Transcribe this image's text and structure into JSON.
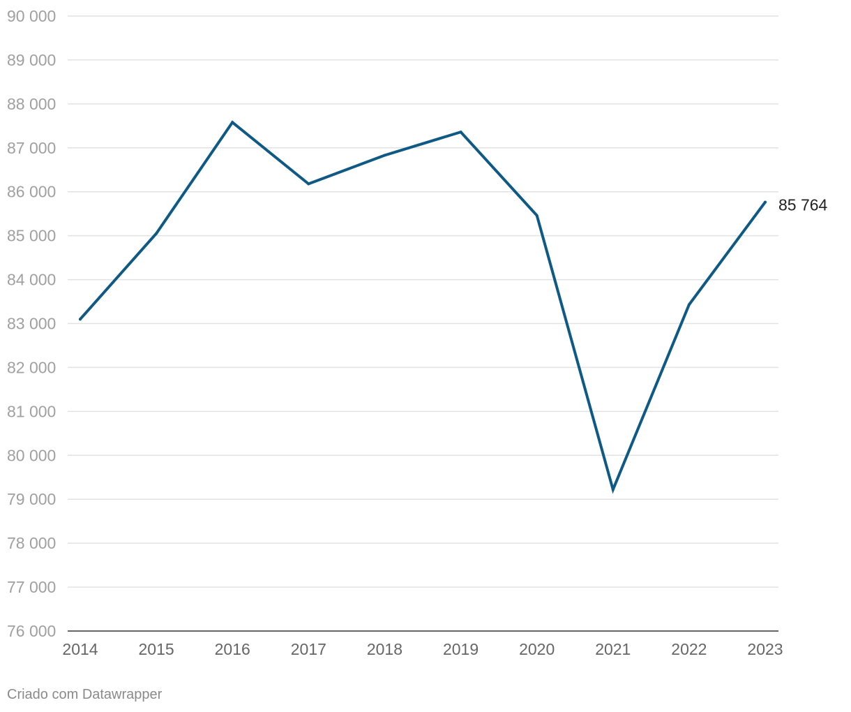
{
  "chart_data": {
    "type": "line",
    "title": "",
    "xlabel": "",
    "ylabel": "",
    "x": [
      "2014",
      "2015",
      "2016",
      "2017",
      "2018",
      "2019",
      "2020",
      "2021",
      "2022",
      "2023"
    ],
    "series": [
      {
        "name": "",
        "values": [
          83100,
          85050,
          87580,
          86180,
          86830,
          87360,
          85460,
          79220,
          83430,
          85764
        ],
        "color": "#0e5a85"
      }
    ],
    "ylim": [
      76000,
      90000
    ],
    "yticks": [
      76000,
      77000,
      78000,
      79000,
      80000,
      81000,
      82000,
      83000,
      84000,
      85000,
      86000,
      87000,
      88000,
      89000,
      90000
    ],
    "ytick_labels": [
      "76 000",
      "77 000",
      "78 000",
      "79 000",
      "80 000",
      "81 000",
      "82 000",
      "83 000",
      "84 000",
      "85 000",
      "86 000",
      "87 000",
      "88 000",
      "89 000",
      "90 000"
    ],
    "end_label": "85 764",
    "grid": true
  },
  "footer": {
    "credit": "Criado com Datawrapper"
  }
}
